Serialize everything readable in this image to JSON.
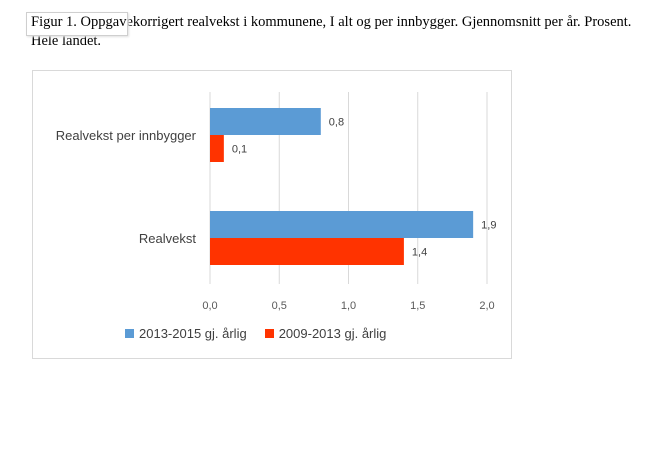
{
  "caption": "Figur 1. Oppgavekorrigert realvekst i kommunene, I alt og per innbygger. Gjennomsnitt per år. Prosent. Hele landet.",
  "chart_data": {
    "type": "bar",
    "orientation": "horizontal",
    "categories": [
      "Realvekst per innbygger",
      "Realvekst"
    ],
    "series": [
      {
        "name": "2013-2015 gj. årlig",
        "color": "#5B9BD5",
        "values": [
          0.8,
          1.9
        ],
        "labels": [
          "0,8",
          "1,9"
        ]
      },
      {
        "name": "2009-2013 gj. årlig",
        "color": "#FF3300",
        "values": [
          0.1,
          1.4
        ],
        "labels": [
          "0,1",
          "1,4"
        ]
      }
    ],
    "x_ticks": [
      "0,0",
      "0,5",
      "1,0",
      "1,5",
      "2,0"
    ],
    "x_tick_values": [
      0,
      0.5,
      1.0,
      1.5,
      2.0
    ],
    "xlim": [
      0,
      2.0
    ],
    "grid": true,
    "legend_position": "bottom"
  }
}
